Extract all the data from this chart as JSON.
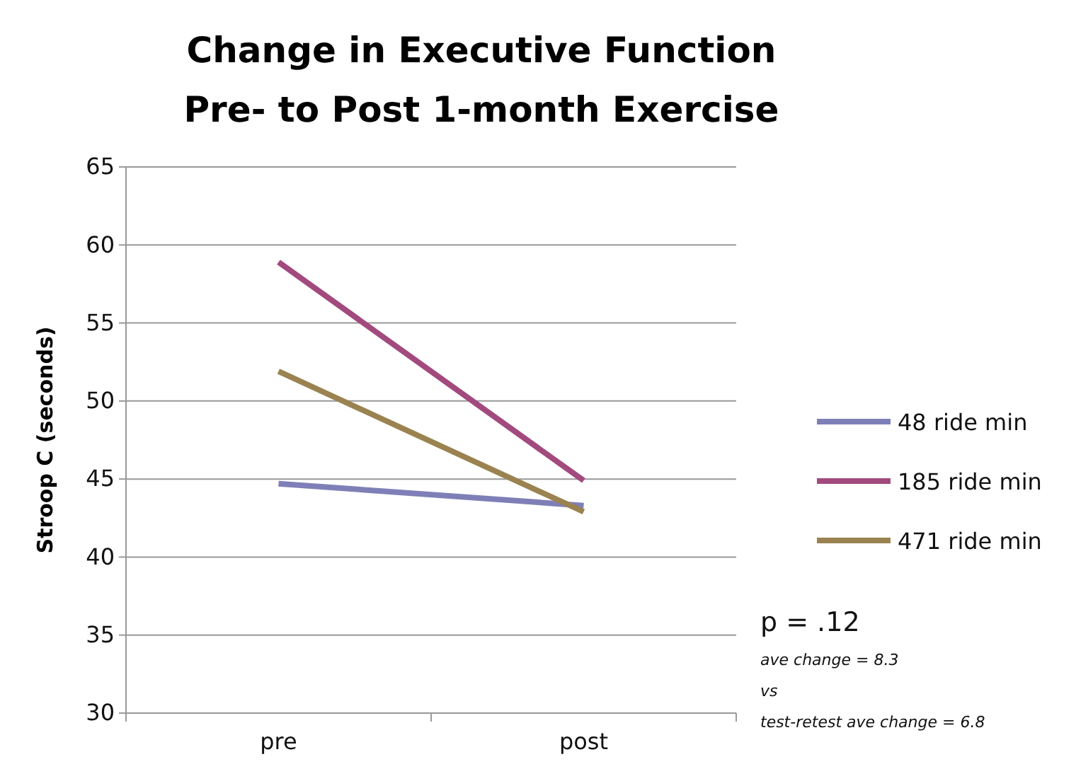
{
  "chart_data": {
    "type": "line",
    "title": "Change in Executive Function\nPre- to Post 1-month Exercise",
    "ylabel": "Stroop C (seconds)",
    "categories": [
      "pre",
      "post"
    ],
    "series": [
      {
        "name": "48 ride min",
        "color": "#7f7fb8",
        "values": [
          44.7,
          43.3
        ]
      },
      {
        "name": "185 ride min",
        "color": "#a24a7e",
        "values": [
          58.9,
          44.9
        ]
      },
      {
        "name": "471 ride min",
        "color": "#9a8350",
        "values": [
          51.9,
          42.9
        ]
      }
    ],
    "ylim": [
      30,
      65
    ],
    "yticks": [
      30,
      35,
      40,
      45,
      50,
      55,
      60,
      65
    ],
    "grid": "y",
    "legend": "right",
    "marker": "none",
    "line_style": "solid",
    "annotations": [
      "p = .12",
      "ave change = 8.3",
      "vs",
      "test-retest ave change = 6.8"
    ]
  }
}
